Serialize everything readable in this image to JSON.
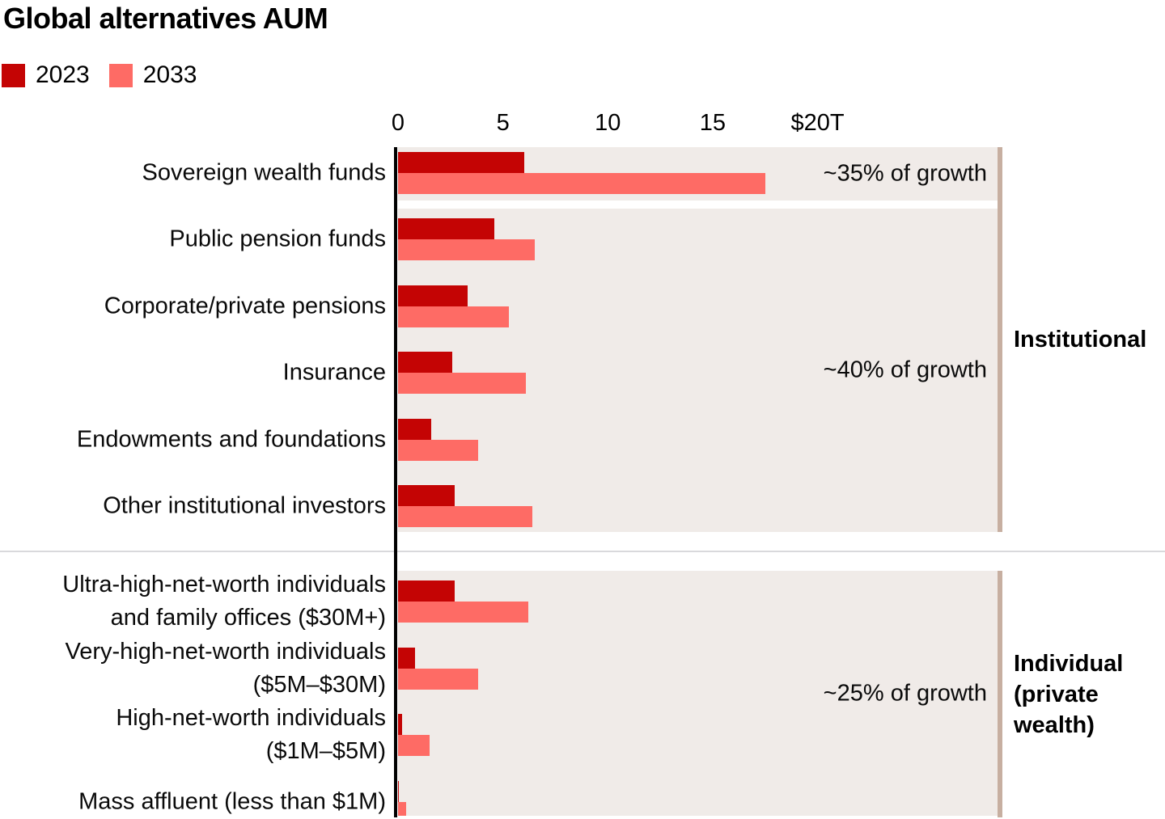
{
  "title": "Global alternatives AUM",
  "legend": {
    "items": [
      {
        "label": "2023",
        "color": "#c40404"
      },
      {
        "label": "2033",
        "color": "#fe6b65"
      }
    ]
  },
  "styles": {
    "plot_background": "#f0ebe8",
    "section_accent_bar": "#c7afa1",
    "divider_line": "#d9d9dc",
    "axis_line": "#000000"
  },
  "chart_data": {
    "type": "bar",
    "orientation": "horizontal",
    "title": "Global alternatives AUM",
    "value_unit": "USD trillions",
    "xlabel": "",
    "ylabel": "",
    "xlim": [
      0,
      28.6
    ],
    "grid": false,
    "legend_position": "top-left",
    "series": [
      "2023",
      "2033"
    ],
    "colors": {
      "2023": "#c40404",
      "2033": "#fe6b65"
    },
    "x_ticks": [
      {
        "value": 0,
        "label": "0"
      },
      {
        "value": 5,
        "label": "5"
      },
      {
        "value": 10,
        "label": "10"
      },
      {
        "value": 15,
        "label": "15"
      },
      {
        "value": 20,
        "label": "$20T"
      }
    ],
    "blocks": [
      {
        "section": "Institutional",
        "annotation": "~35% of growth",
        "rows": [
          {
            "label_lines": [
              "Sovereign wealth funds"
            ],
            "values": {
              "2023": 6.0,
              "2033": 17.5
            }
          }
        ]
      },
      {
        "section": "Institutional",
        "annotation": "~40% of growth",
        "rows": [
          {
            "label_lines": [
              "Public pension funds"
            ],
            "values": {
              "2023": 4.6,
              "2033": 6.5
            }
          },
          {
            "label_lines": [
              "Corporate/private pensions"
            ],
            "values": {
              "2023": 3.3,
              "2033": 5.3
            }
          },
          {
            "label_lines": [
              "Insurance"
            ],
            "values": {
              "2023": 2.6,
              "2033": 6.1
            }
          },
          {
            "label_lines": [
              "Endowments and foundations"
            ],
            "values": {
              "2023": 1.6,
              "2033": 3.8
            }
          },
          {
            "label_lines": [
              "Other institutional investors"
            ],
            "values": {
              "2023": 2.7,
              "2033": 6.4
            }
          }
        ]
      },
      {
        "section": "Individual (private wealth)",
        "annotation": "~25% of growth",
        "rows": [
          {
            "label_lines": [
              "Ultra-high-net-worth individuals",
              "and family offices ($30M+)"
            ],
            "values": {
              "2023": 2.7,
              "2033": 6.2
            }
          },
          {
            "label_lines": [
              "Very-high-net-worth individuals",
              "($5M–$30M)"
            ],
            "values": {
              "2023": 0.8,
              "2033": 3.8
            }
          },
          {
            "label_lines": [
              "High-net-worth individuals",
              "($1M–$5M)"
            ],
            "values": {
              "2023": 0.2,
              "2033": 1.5
            }
          },
          {
            "label_lines": [
              "Mass affluent (less than $1M)"
            ],
            "values": {
              "2023": 0.05,
              "2033": 0.4
            }
          }
        ]
      }
    ],
    "group_labels": [
      {
        "lines": [
          "Institutional"
        ]
      },
      {
        "lines": [
          "Individual",
          "(private",
          "wealth)"
        ]
      }
    ]
  }
}
